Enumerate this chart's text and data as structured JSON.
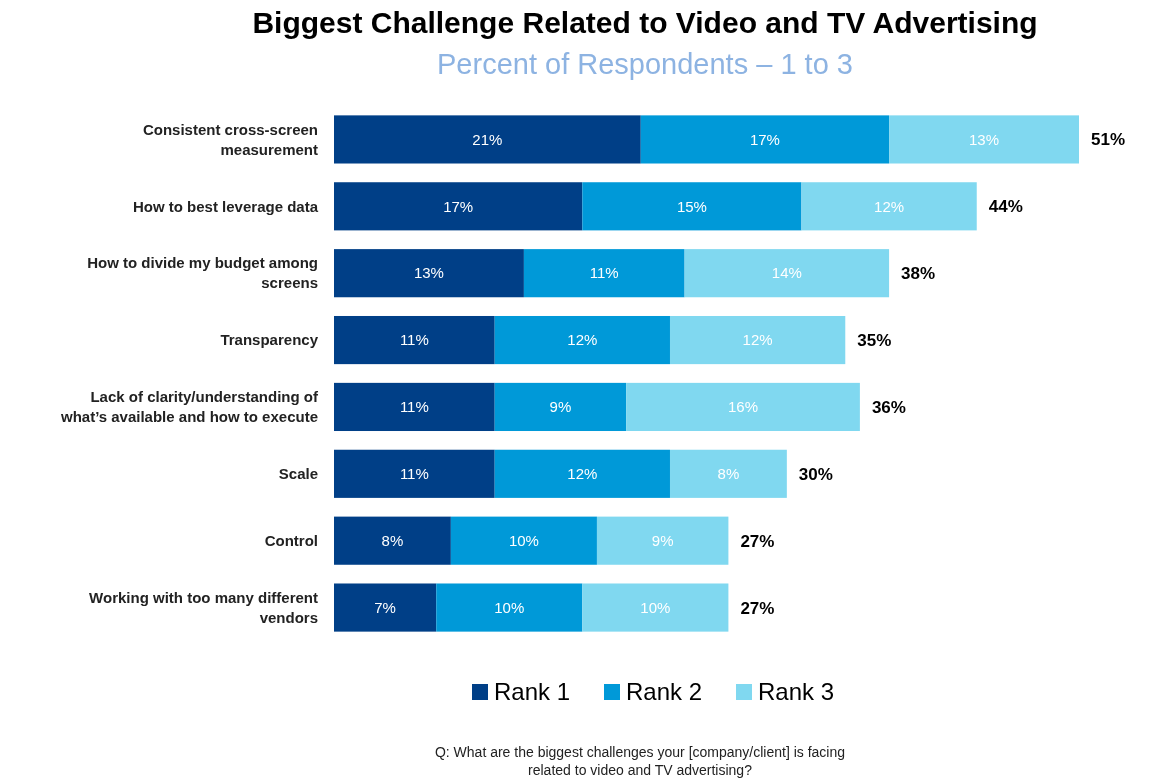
{
  "chart_data": {
    "type": "bar",
    "orientation": "horizontal",
    "stacked": true,
    "title": "Biggest Challenge Related to Video and TV Advertising",
    "subtitle": "Percent of Respondents – 1 to 3",
    "categories": [
      "Consistent cross-screen measurement",
      "How to best leverage data",
      "How to divide my budget among screens",
      "Transparency",
      "Lack of clarity/understanding of what’s available and how to execute",
      "Scale",
      "Control",
      "Working with too many different vendors"
    ],
    "series": [
      {
        "name": "Rank 1",
        "color": "#003f87",
        "values": [
          21,
          17,
          13,
          11,
          11,
          11,
          8,
          7
        ],
        "value_labels": [
          "21%",
          "17%",
          "13%",
          "11%",
          "11%",
          "11%",
          "8%",
          "7%"
        ]
      },
      {
        "name": "Rank 2",
        "color": "#0099d8",
        "values": [
          17,
          15,
          11,
          12,
          9,
          12,
          10,
          10
        ],
        "value_labels": [
          "17%",
          "15%",
          "11%",
          "12%",
          "9%",
          "12%",
          "10%",
          "10%"
        ]
      },
      {
        "name": "Rank 3",
        "color": "#80d8f0",
        "values": [
          13,
          12,
          14,
          12,
          16,
          8,
          9,
          10
        ],
        "value_labels": [
          "13%",
          "12%",
          "14%",
          "12%",
          "16%",
          "8%",
          "9%",
          "10%"
        ]
      }
    ],
    "totals": [
      "51%",
      "44%",
      "38%",
      "35%",
      "36%",
      "30%",
      "27%",
      "27%"
    ],
    "legend": "bottom",
    "annotations": [
      "Q: What are the biggest challenges your [company/client] is facing related to video and TV advertising?"
    ]
  }
}
